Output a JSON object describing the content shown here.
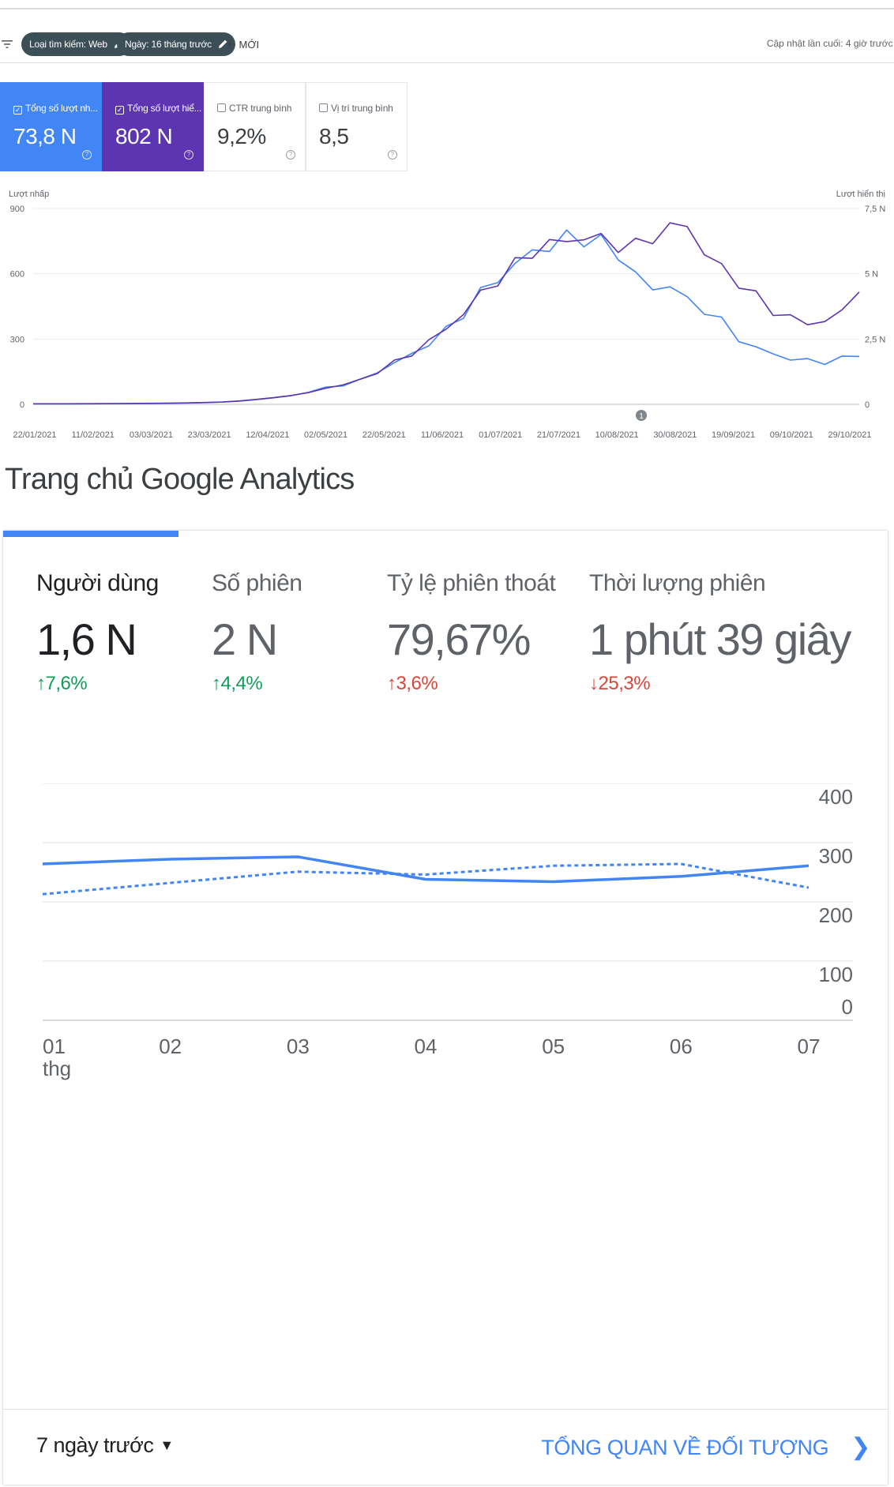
{
  "search_console": {
    "filters": [
      {
        "label": "Loại tìm kiếm: Web"
      },
      {
        "label": "Ngày: 16 tháng trước"
      }
    ],
    "new_label": "MỚI",
    "last_updated": "Cập nhật lần cuối: 4 giờ trước (",
    "metrics": [
      {
        "label": "Tổng số lượt nh...",
        "value": "73,8 N",
        "checked": true,
        "color": "#4285f4"
      },
      {
        "label": "Tổng số lượt hiể...",
        "value": "802 N",
        "checked": true,
        "color": "#5e35b1"
      },
      {
        "label": "CTR trung bình",
        "value": "9,2%",
        "checked": false
      },
      {
        "label": "Vị trí trung bình",
        "value": "8,5",
        "checked": false
      }
    ],
    "annotation_marker": "1"
  },
  "chart_data": [
    {
      "type": "line",
      "left_axis_label": "Lượt nhấp",
      "right_axis_label": "Lượt hiển thị",
      "left_ticks": [
        "0",
        "300",
        "600",
        "900"
      ],
      "right_ticks": [
        "0",
        "2,5 N",
        "5 N",
        "7,5 N"
      ],
      "ylim_left": [
        0,
        900
      ],
      "ylim_right": [
        0,
        7500
      ],
      "x_tick_labels": [
        "22/01/2021",
        "11/02/2021",
        "03/03/2021",
        "23/03/2021",
        "12/04/2021",
        "02/05/2021",
        "22/05/2021",
        "11/06/2021",
        "01/07/2021",
        "21/07/2021",
        "10/08/2021",
        "30/08/2021",
        "19/09/2021",
        "09/10/2021",
        "29/10/2021"
      ],
      "series": [
        {
          "name": "Tổng số lượt nhấp",
          "color": "#4285f4",
          "axis": "left",
          "values": [
            2,
            2,
            2,
            2,
            3,
            3,
            4,
            4,
            5,
            6,
            8,
            10,
            15,
            22,
            30,
            40,
            55,
            75,
            90,
            110,
            150,
            190,
            230,
            280,
            340,
            420,
            510,
            580,
            640,
            700,
            730,
            760,
            770,
            740,
            690,
            600,
            520,
            560,
            470,
            440,
            380,
            300,
            260,
            230,
            210,
            200,
            195,
            210,
            220
          ]
        },
        {
          "name": "Tổng số lượt hiển thị",
          "color": "#5e35b1",
          "axis": "right",
          "values": [
            20,
            20,
            20,
            25,
            25,
            30,
            35,
            40,
            45,
            55,
            70,
            90,
            130,
            190,
            260,
            340,
            450,
            620,
            760,
            920,
            1250,
            1600,
            1950,
            2400,
            2900,
            3500,
            4200,
            4800,
            5300,
            5900,
            6100,
            6300,
            6400,
            6300,
            6150,
            6000,
            6500,
            6700,
            6900,
            5800,
            5200,
            4700,
            4100,
            3600,
            3300,
            3100,
            3200,
            3500,
            4300
          ]
        }
      ]
    },
    {
      "type": "line",
      "x_tick_labels": [
        "01",
        "02",
        "03",
        "04",
        "05",
        "06",
        "07"
      ],
      "x_sub_label": "thg",
      "y_ticks": [
        "0",
        "100",
        "200",
        "300",
        "400"
      ],
      "ylim": [
        0,
        400
      ],
      "series": [
        {
          "style": "solid",
          "color": "#4285f4",
          "values": [
            264,
            272,
            276,
            238,
            234,
            243,
            261
          ]
        },
        {
          "style": "dashed",
          "color": "#4285f4",
          "values": [
            213,
            232,
            251,
            246,
            261,
            264,
            224
          ]
        }
      ]
    }
  ],
  "analytics": {
    "title": "Trang chủ Google Analytics",
    "metrics": [
      {
        "label": "Người dùng",
        "value": "1,6 N",
        "change": "7,6%",
        "direction": "up"
      },
      {
        "label": "Số phiên",
        "value": "2 N",
        "change": "4,4%",
        "direction": "up"
      },
      {
        "label": "Tỷ lệ phiên thoát",
        "value": "79,67%",
        "change": "3,6%",
        "direction": "up"
      },
      {
        "label": "Thời lượng phiên",
        "value": "1 phút 39 giây",
        "change": "25,3%",
        "direction": "down"
      }
    ],
    "date_range": "7 ngày trước",
    "audience_link": "TỔNG QUAN VỀ ĐỐI TƯỢNG"
  }
}
